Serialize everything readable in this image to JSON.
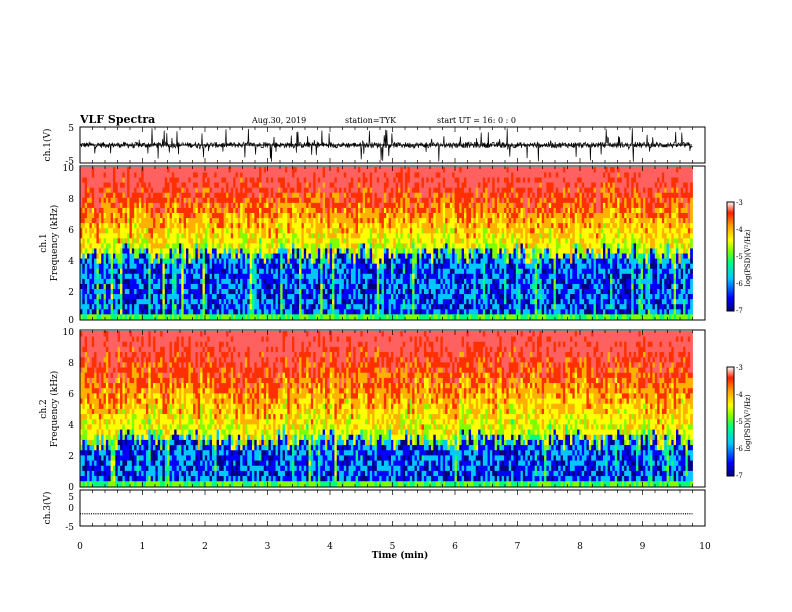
{
  "header": {
    "title": "VLF Spectra",
    "date": "Aug.30, 2019",
    "station": "station=TYK",
    "start": "start UT =  16: 0 : 0"
  },
  "chart_data": [
    {
      "type": "line",
      "id": "ch1_waveform",
      "ylabel": "ch.1(V)",
      "yticks": [
        "5",
        "-5"
      ],
      "ylim": [
        -5,
        5
      ],
      "xlim": [
        0,
        10
      ],
      "description_values": "noisy waveform centered near 0 V with spikes to about ±5 V; data end at ~9.8 min"
    },
    {
      "type": "heatmap",
      "id": "ch1_spectrogram",
      "ylabel": "ch.1\nFrequency (kHz)",
      "ylabel_line1": "ch.1",
      "ylabel_line2": "Frequency (kHz)",
      "yticks": [
        "0",
        "2",
        "4",
        "6",
        "8",
        "10"
      ],
      "ylim": [
        0,
        10
      ],
      "xlim": [
        0,
        10
      ],
      "data_end_min": 9.8,
      "colorbar": {
        "label": "log(PSD)(V²/Hz)",
        "ticks": [
          "-3",
          "-4",
          "-5",
          "-6",
          "-7"
        ],
        "range": [
          -7,
          -3
        ]
      },
      "low_band_top_khz": 4.3
    },
    {
      "type": "heatmap",
      "id": "ch2_spectrogram",
      "ylabel": "ch.2\nFrequency (kHz)",
      "ylabel_line1": "ch.2",
      "ylabel_line2": "Frequency (kHz)",
      "yticks": [
        "0",
        "2",
        "4",
        "6",
        "8",
        "10"
      ],
      "ylim": [
        0,
        10
      ],
      "xlim": [
        0,
        10
      ],
      "data_end_min": 9.8,
      "colorbar": {
        "label": "log(PSD)(V²/Hz)",
        "ticks": [
          "-3",
          "-4",
          "-5",
          "-6",
          "-7"
        ],
        "range": [
          -7,
          -3
        ]
      },
      "low_band_top_khz": 3.0
    },
    {
      "type": "line",
      "id": "ch3_waveform",
      "ylabel": "ch.3(V)",
      "yticks": [
        "5",
        "0",
        "-5"
      ],
      "ylim": [
        -5,
        5
      ],
      "xlim": [
        0,
        10
      ],
      "xlabel": "Time (min)",
      "xticks": [
        "0",
        "1",
        "2",
        "3",
        "4",
        "5",
        "6",
        "7",
        "8",
        "9",
        "10"
      ],
      "constant_value": -1.8
    }
  ],
  "colors": {
    "colormap": [
      "#000080",
      "#0000ff",
      "#00c8ff",
      "#00ff80",
      "#80ff00",
      "#ffff00",
      "#ffb000",
      "#ff3000",
      "#ff6060"
    ],
    "axis": "#000000"
  }
}
